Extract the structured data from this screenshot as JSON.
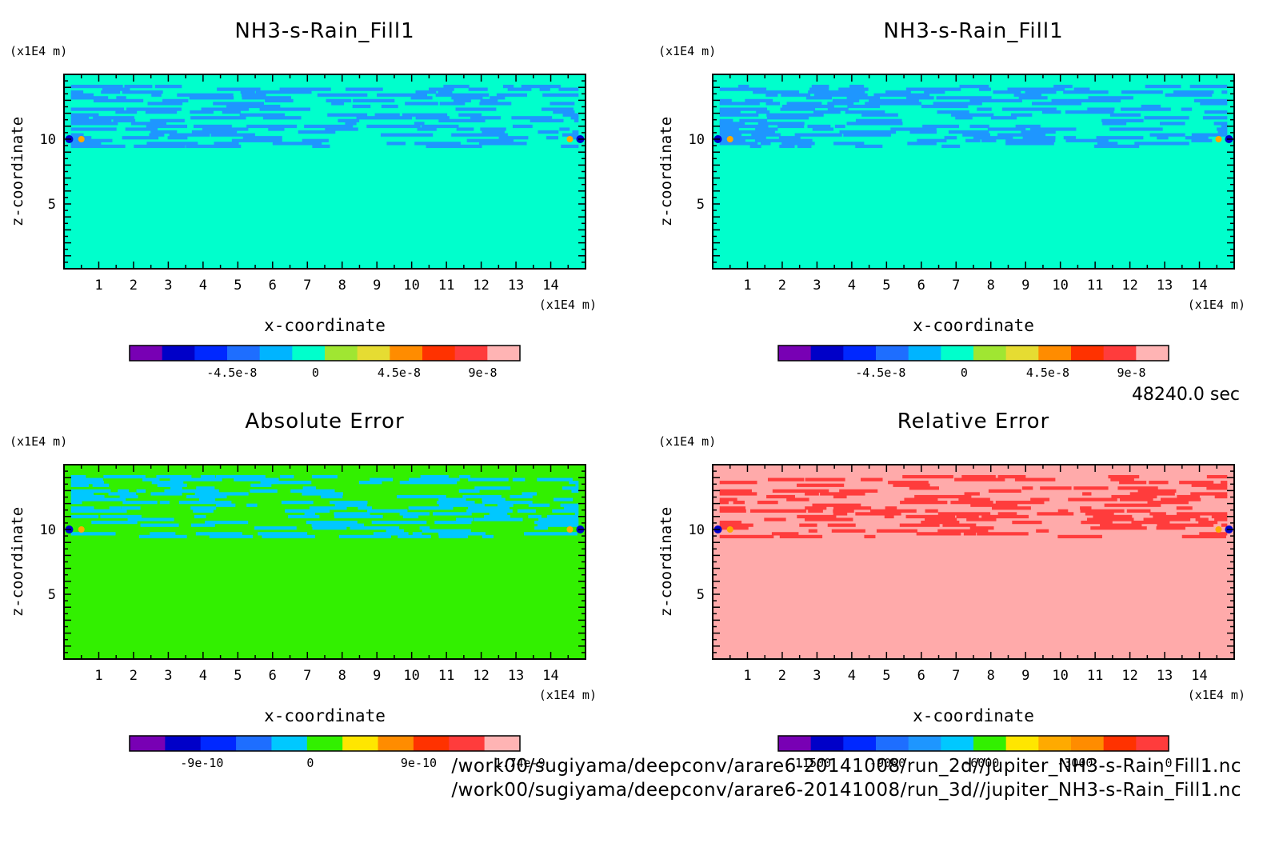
{
  "time_label": "48240.0 sec",
  "footer": {
    "line1": "/work00/sugiyama/deepconv/arare6-20141008/run_2d//jupiter_NH3-s-Rain_Fill1.nc",
    "line2": "/work00/sugiyama/deepconv/arare6-20141008/run_3d//jupiter_NH3-s-Rain_Fill1.nc"
  },
  "chart_data": [
    {
      "type": "heatmap",
      "title": "NH3-s-Rain_Fill1",
      "xlabel": "x-coordinate",
      "ylabel": "z-coordinate",
      "xunit": "(x1E4 m)",
      "yunit": "(x1E4 m)",
      "xlim": [
        0,
        15
      ],
      "ylim": [
        0,
        15
      ],
      "xticks": [
        "1",
        "2",
        "3",
        "4",
        "5",
        "6",
        "7",
        "8",
        "9",
        "10",
        "11",
        "12",
        "13",
        "14"
      ],
      "yticks": [
        "5",
        "10"
      ],
      "background_color": "#00ffcc",
      "pattern_color": "#1e96ff",
      "colorbar": {
        "colors": [
          "#7800b4",
          "#0000c8",
          "#0028ff",
          "#1e6eff",
          "#00b4ff",
          "#00ffcc",
          "#a0e632",
          "#e6dc32",
          "#ff8c00",
          "#ff3200",
          "#ff3c3c",
          "#ffb4b4"
        ],
        "range": [
          -1e-07,
          1.1e-07
        ],
        "tick_labels": [
          {
            "value": -4.5e-08,
            "label": "-4.5e-8"
          },
          {
            "value": 0,
            "label": "0"
          },
          {
            "value": 4.5e-08,
            "label": "4.5e-8"
          },
          {
            "value": 9e-08,
            "label": "9e-8"
          }
        ]
      }
    },
    {
      "type": "heatmap",
      "title": "NH3-s-Rain_Fill1",
      "xlabel": "x-coordinate",
      "ylabel": "z-coordinate",
      "xunit": "(x1E4 m)",
      "yunit": "(x1E4 m)",
      "xlim": [
        0,
        15
      ],
      "ylim": [
        0,
        15
      ],
      "xticks": [
        "1",
        "2",
        "3",
        "4",
        "5",
        "6",
        "7",
        "8",
        "9",
        "10",
        "11",
        "12",
        "13",
        "14"
      ],
      "yticks": [
        "5",
        "10"
      ],
      "background_color": "#00ffcc",
      "pattern_color": "#1e96ff",
      "colorbar": {
        "colors": [
          "#7800b4",
          "#0000c8",
          "#0028ff",
          "#1e6eff",
          "#00b4ff",
          "#00ffcc",
          "#a0e632",
          "#e6dc32",
          "#ff8c00",
          "#ff3200",
          "#ff3c3c",
          "#ffb4b4"
        ],
        "range": [
          -1e-07,
          1.1e-07
        ],
        "tick_labels": [
          {
            "value": -4.5e-08,
            "label": "-4.5e-8"
          },
          {
            "value": 0,
            "label": "0"
          },
          {
            "value": 4.5e-08,
            "label": "4.5e-8"
          },
          {
            "value": 9e-08,
            "label": "9e-8"
          }
        ]
      }
    },
    {
      "type": "heatmap",
      "title": "Absolute Error",
      "xlabel": "x-coordinate",
      "ylabel": "z-coordinate",
      "xunit": "(x1E4 m)",
      "yunit": "(x1E4 m)",
      "xlim": [
        0,
        15
      ],
      "ylim": [
        0,
        15
      ],
      "xticks": [
        "1",
        "2",
        "3",
        "4",
        "5",
        "6",
        "7",
        "8",
        "9",
        "10",
        "11",
        "12",
        "13",
        "14"
      ],
      "yticks": [
        "5",
        "10"
      ],
      "background_color": "#32f000",
      "pattern_color": "#00c8ff",
      "colorbar": {
        "colors": [
          "#7800b4",
          "#0000c8",
          "#0028ff",
          "#1e6eff",
          "#00c8ff",
          "#32f000",
          "#ffe600",
          "#ff8c00",
          "#ff3200",
          "#ff3c3c",
          "#ffb4b4"
        ],
        "range": [
          -1.5e-09,
          1.74e-09
        ],
        "tick_labels": [
          {
            "value": -9e-10,
            "label": "-9e-10"
          },
          {
            "value": 0,
            "label": "0"
          },
          {
            "value": 9e-10,
            "label": "9e-10"
          },
          {
            "value": 1.74e-09,
            "label": "1.74e-9"
          }
        ]
      }
    },
    {
      "type": "heatmap",
      "title": "Relative Error",
      "xlabel": "x-coordinate",
      "ylabel": "z-coordinate",
      "xunit": "(x1E4 m)",
      "yunit": "(x1E4 m)",
      "xlim": [
        0,
        15
      ],
      "ylim": [
        0,
        15
      ],
      "xticks": [
        "1",
        "2",
        "3",
        "4",
        "5",
        "6",
        "7",
        "8",
        "9",
        "10",
        "11",
        "12",
        "13",
        "14"
      ],
      "yticks": [
        "5",
        "10"
      ],
      "background_color": "#ffaaaa",
      "pattern_color": "#ff3c3c",
      "colorbar": {
        "colors": [
          "#7800b4",
          "#0000c8",
          "#0028ff",
          "#1e6eff",
          "#1e96ff",
          "#00c8ff",
          "#32f000",
          "#ffe600",
          "#ffaa00",
          "#ff8c00",
          "#ff3200",
          "#ff3c3c"
        ],
        "range": [
          -12500,
          0
        ],
        "tick_labels": [
          {
            "value": -11500,
            "label": "-11500"
          },
          {
            "value": -9000,
            "label": "-9000"
          },
          {
            "value": -6000,
            "label": "-6000"
          },
          {
            "value": -3000,
            "label": "-3000"
          },
          {
            "value": 0,
            "label": "0"
          }
        ]
      }
    }
  ]
}
